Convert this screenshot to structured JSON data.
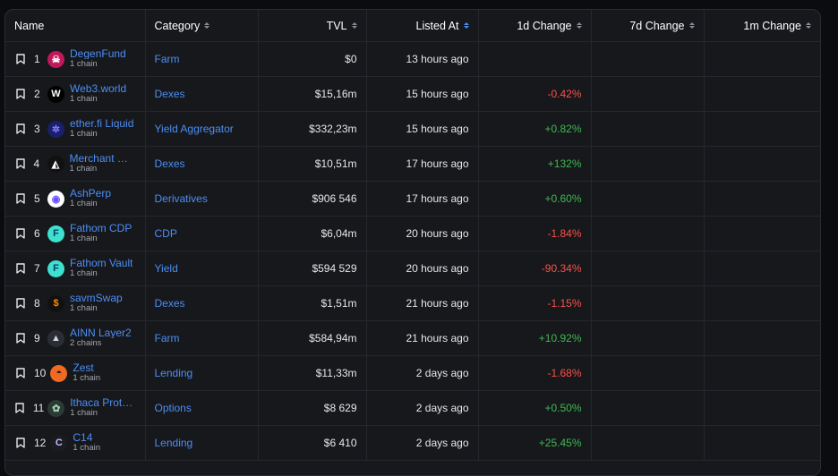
{
  "columns": {
    "name": "Name",
    "category": "Category",
    "tvl": "TVL",
    "listed_at": "Listed At",
    "d1": "1d Change",
    "d7": "7d Change",
    "m1": "1m Change"
  },
  "rows": [
    {
      "rank": "1",
      "name": "DegenFund",
      "chains": "1 chain",
      "category": "Farm",
      "tvl": "$0",
      "listed": "13 hours ago",
      "d1": "",
      "logo": {
        "bg": "#c2185b",
        "fg": "#ffffff",
        "glyph": "☠"
      }
    },
    {
      "rank": "2",
      "name": "Web3.world",
      "chains": "1 chain",
      "category": "Dexes",
      "tvl": "$15,16m",
      "listed": "15 hours ago",
      "d1": "-0.42%",
      "logo": {
        "bg": "#000000",
        "fg": "#ffffff",
        "glyph": "W"
      }
    },
    {
      "rank": "3",
      "name": "ether.fi Liquid",
      "chains": "1 chain",
      "category": "Yield Aggregator",
      "tvl": "$332,23m",
      "listed": "15 hours ago",
      "d1": "+0.82%",
      "logo": {
        "bg": "#1a1f6b",
        "fg": "#8a7cff",
        "glyph": "✲"
      }
    },
    {
      "rank": "4",
      "name": "Merchant Moe",
      "chains": "1 chain",
      "category": "Dexes",
      "tvl": "$10,51m",
      "listed": "17 hours ago",
      "d1": "+132%",
      "logo": {
        "bg": "#111111",
        "fg": "#ffffff",
        "glyph": "◭"
      }
    },
    {
      "rank": "5",
      "name": "AshPerp",
      "chains": "1 chain",
      "category": "Derivatives",
      "tvl": "$906 546",
      "listed": "17 hours ago",
      "d1": "+0.60%",
      "logo": {
        "bg": "#ffffff",
        "fg": "#6b4cff",
        "glyph": "◉"
      }
    },
    {
      "rank": "6",
      "name": "Fathom CDP",
      "chains": "1 chain",
      "category": "CDP",
      "tvl": "$6,04m",
      "listed": "20 hours ago",
      "d1": "-1.84%",
      "logo": {
        "bg": "#3ee0d0",
        "fg": "#0b3b6b",
        "glyph": "F"
      }
    },
    {
      "rank": "7",
      "name": "Fathom Vault",
      "chains": "1 chain",
      "category": "Yield",
      "tvl": "$594 529",
      "listed": "20 hours ago",
      "d1": "-90.34%",
      "logo": {
        "bg": "#3ee0d0",
        "fg": "#0b3b6b",
        "glyph": "F"
      }
    },
    {
      "rank": "8",
      "name": "savmSwap",
      "chains": "1 chain",
      "category": "Dexes",
      "tvl": "$1,51m",
      "listed": "21 hours ago",
      "d1": "-1.15%",
      "logo": {
        "bg": "#111111",
        "fg": "#ff8a00",
        "glyph": "$"
      }
    },
    {
      "rank": "9",
      "name": "AINN Layer2",
      "chains": "2 chains",
      "category": "Farm",
      "tvl": "$584,94m",
      "listed": "21 hours ago",
      "d1": "+10.92%",
      "logo": {
        "bg": "#2a2d33",
        "fg": "#d0d3da",
        "glyph": "▲"
      }
    },
    {
      "rank": "10",
      "name": "Zest",
      "chains": "1 chain",
      "category": "Lending",
      "tvl": "$11,33m",
      "listed": "2 days ago",
      "d1": "-1.68%",
      "logo": {
        "bg": "#f26a21",
        "fg": "#1a1a1a",
        "glyph": "◓"
      }
    },
    {
      "rank": "11",
      "name": "Ithaca Protocol",
      "chains": "1 chain",
      "category": "Options",
      "tvl": "$8 629",
      "listed": "2 days ago",
      "d1": "+0.50%",
      "logo": {
        "bg": "#2b3a33",
        "fg": "#9fd1b5",
        "glyph": "✿"
      }
    },
    {
      "rank": "12",
      "name": "C14",
      "chains": "1 chain",
      "category": "Lending",
      "tvl": "$6 410",
      "listed": "2 days ago",
      "d1": "+25.45%",
      "logo": {
        "bg": "#1b1c20",
        "fg": "#c9b8ff",
        "glyph": "C"
      }
    }
  ]
}
